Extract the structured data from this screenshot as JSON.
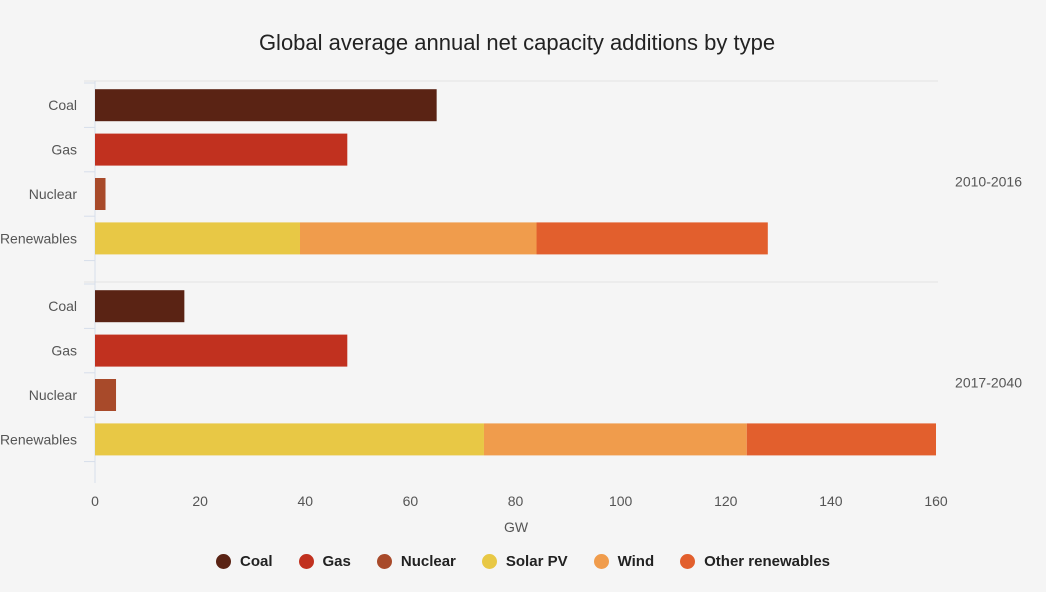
{
  "chart_data": {
    "type": "bar",
    "orientation": "horizontal",
    "stacked": true,
    "title": "Global average annual net capacity additions by type",
    "xlabel": "GW",
    "ylabel": "",
    "xlim": [
      0,
      160
    ],
    "xticks": [
      0,
      20,
      40,
      60,
      80,
      100,
      120,
      140,
      160
    ],
    "groups": [
      "2010-2016",
      "2017-2040"
    ],
    "categories": [
      "Coal",
      "Gas",
      "Nuclear",
      "Renewables"
    ],
    "series": [
      {
        "name": "Coal",
        "color": "#5a2314",
        "values": [
          [
            65,
            0,
            0,
            0
          ],
          [
            17,
            0,
            0,
            0
          ]
        ]
      },
      {
        "name": "Gas",
        "color": "#c1311f",
        "values": [
          [
            0,
            48,
            0,
            0
          ],
          [
            0,
            48,
            0,
            0
          ]
        ]
      },
      {
        "name": "Nuclear",
        "color": "#a84a2a",
        "values": [
          [
            0,
            0,
            2,
            0
          ],
          [
            0,
            0,
            4,
            0
          ]
        ]
      },
      {
        "name": "Solar PV",
        "color": "#e8c845",
        "values": [
          [
            0,
            0,
            0,
            39
          ],
          [
            0,
            0,
            0,
            74
          ]
        ]
      },
      {
        "name": "Wind",
        "color": "#f09c4c",
        "values": [
          [
            0,
            0,
            0,
            45
          ],
          [
            0,
            0,
            0,
            50
          ]
        ]
      },
      {
        "name": "Other renewables",
        "color": "#e25f2d",
        "values": [
          [
            0,
            0,
            0,
            44
          ],
          [
            0,
            0,
            0,
            36
          ]
        ]
      }
    ],
    "legend_position": "bottom-center",
    "grid": false
  }
}
